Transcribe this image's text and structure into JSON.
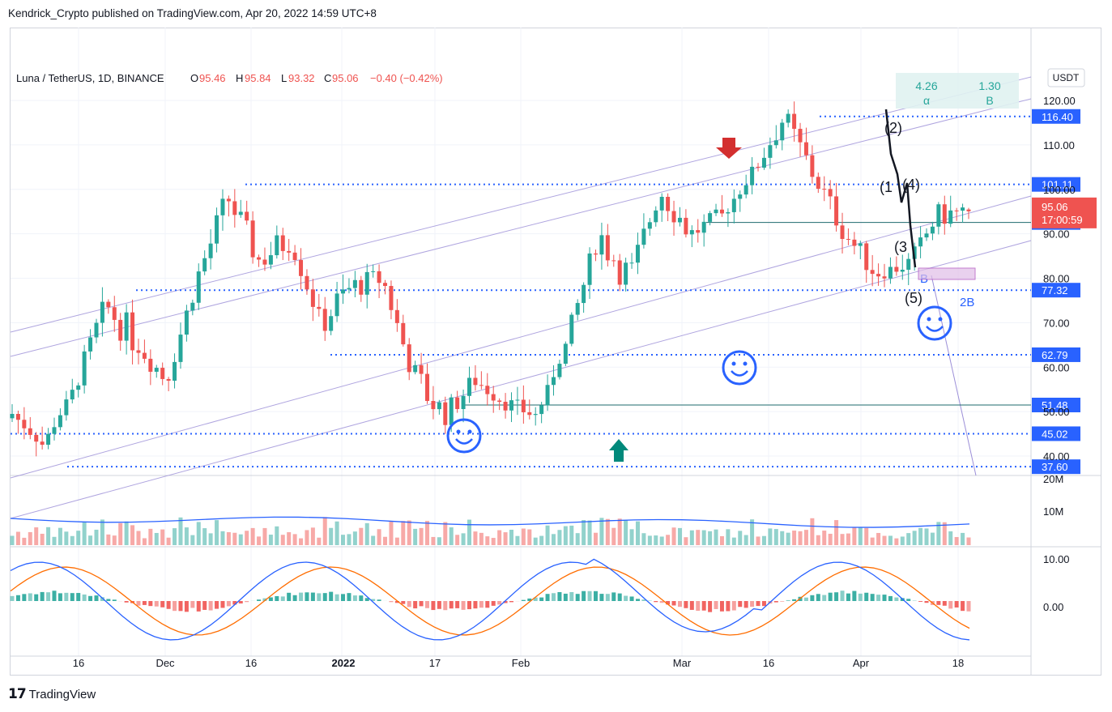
{
  "header": {
    "published": "Kendrick_Crypto published on TradingView.com, Apr 20, 2022 14:59 UTC+8"
  },
  "footer": {
    "brand": "TradingView"
  },
  "legend": {
    "symbol": "Luna / TetherUS, 1D, BINANCE",
    "o_label": "O",
    "o": "95.46",
    "h_label": "H",
    "h": "95.84",
    "l_label": "L",
    "l": "93.32",
    "c_label": "C",
    "c": "95.06",
    "change": "−0.40 (−0.42%)"
  },
  "currency_button": "USDT",
  "fib_box": {
    "v1": "4.26",
    "l1": "α",
    "v2": "1.30",
    "l2": "B"
  },
  "colors": {
    "up": "#26a69a",
    "down": "#ef5350",
    "level": "#2962ff",
    "channel": "#9c8fd8",
    "macd": "#2962ff",
    "signal": "#ff6d00",
    "volume_ma": "#2962ff"
  },
  "chart_data": {
    "type": "candlestick",
    "symbol": "Luna / TetherUS, 1D, BINANCE",
    "y_axis": {
      "ticks": [
        "120.00",
        "110.00",
        "100.00",
        "90.00",
        "80.00",
        "70.00",
        "60.00",
        "50.00",
        "40.00"
      ],
      "range": [
        35,
        127
      ]
    },
    "x_axis": {
      "ticks": [
        "16",
        "Dec",
        "16",
        "2022",
        "17",
        "Feb",
        "Mar",
        "16",
        "Apr",
        "18"
      ]
    },
    "last_price": "95.06",
    "countdown": "17:00:59",
    "levels": [
      "116.40",
      "101.11",
      "92.55",
      "77.32",
      "62.79",
      "51.48",
      "45.02",
      "37.60"
    ],
    "annotations": [
      "(2)",
      "(1",
      "(4)",
      "(3",
      "(5)",
      "B",
      "2B"
    ],
    "candles_approx": [
      [
        "Nov-10",
        48.5,
        51,
        44,
        49.5
      ],
      [
        "Nov-20",
        41,
        44,
        38,
        42.5
      ],
      [
        "Nov-28",
        44,
        56,
        43,
        55
      ],
      [
        "Dec-05",
        58,
        78,
        55,
        74
      ],
      [
        "Dec-12",
        73,
        76,
        60,
        66
      ],
      [
        "Dec-18",
        64,
        66,
        52,
        57
      ],
      [
        "Dec-24",
        66,
        85,
        64,
        80
      ],
      [
        "Dec-28",
        85,
        103,
        83,
        98
      ],
      [
        "Jan-02",
        96,
        99,
        79,
        84
      ],
      [
        "Jan-10",
        88,
        94,
        81,
        89
      ],
      [
        "Jan-16",
        86,
        88,
        65,
        70
      ],
      [
        "Jan-22",
        72,
        80,
        64,
        78
      ],
      [
        "Jan-28",
        84,
        90,
        76,
        80
      ],
      [
        "Feb-01",
        76,
        77,
        54,
        58
      ],
      [
        "Feb-06",
        57,
        60,
        45,
        49
      ],
      [
        "Feb-13",
        50,
        59,
        48,
        57
      ],
      [
        "Feb-20",
        56,
        58,
        47,
        52
      ],
      [
        "Feb-25",
        50,
        52,
        46,
        49
      ],
      [
        "Mar-01",
        55,
        68,
        53,
        66
      ],
      [
        "Mar-04",
        68,
        92,
        66,
        90
      ],
      [
        "Mar-09",
        90,
        93,
        76,
        80
      ],
      [
        "Mar-14",
        86,
        104,
        84,
        100
      ],
      [
        "Mar-18",
        94,
        97,
        84,
        90
      ],
      [
        "Mar-24",
        89,
        96,
        87,
        94
      ],
      [
        "Mar-30",
        90,
        106,
        89,
        104
      ],
      [
        "Apr-03",
        107,
        120,
        100,
        116
      ],
      [
        "Apr-06",
        113,
        117,
        100,
        103
      ],
      [
        "Apr-09",
        100,
        103,
        88,
        90
      ],
      [
        "Apr-12",
        83,
        87,
        77,
        81
      ],
      [
        "Apr-15",
        82,
        89,
        79,
        83
      ],
      [
        "Apr-18",
        79,
        94,
        78,
        94
      ],
      [
        "Apr-20",
        95.46,
        95.84,
        93.32,
        95.06
      ]
    ],
    "volume": {
      "label": "10M",
      "top_label": "20M"
    },
    "macd": {
      "ticks": [
        "10.00",
        "0.00"
      ]
    }
  }
}
